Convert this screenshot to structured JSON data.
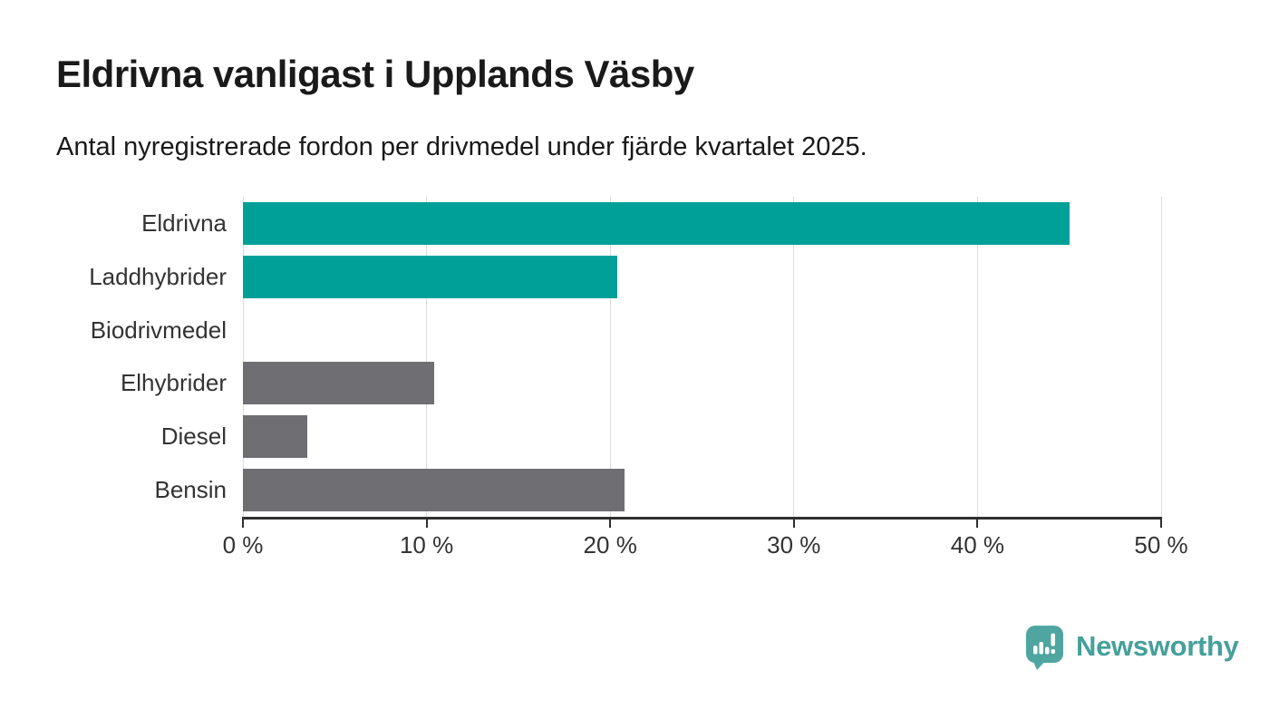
{
  "header": {
    "title": "Eldrivna vanligast i Upplands Väsby",
    "subtitle": "Antal nyregistrerade fordon per drivmedel under fjärde kvartalet 2025."
  },
  "chart_data": {
    "type": "bar",
    "orientation": "horizontal",
    "title": "Eldrivna vanligast i Upplands Väsby",
    "subtitle": "Antal nyregistrerade fordon per drivmedel under fjärde kvartalet 2025.",
    "categories": [
      "Eldrivna",
      "Laddhybrider",
      "Biodrivmedel",
      "Elhybrider",
      "Diesel",
      "Bensin"
    ],
    "values": [
      45.0,
      20.4,
      0,
      10.4,
      3.5,
      20.8
    ],
    "unit": "%",
    "bar_colors": [
      "#00A099",
      "#00A099",
      "#6E6E73",
      "#6E6E73",
      "#6E6E73",
      "#6E6E73"
    ],
    "xlim": [
      0,
      50
    ],
    "x_ticks": [
      0,
      10,
      20,
      30,
      40,
      50
    ],
    "x_tick_labels": [
      "0 %",
      "10 %",
      "20 %",
      "30 %",
      "40 %",
      "50 %"
    ],
    "grid": true,
    "legend_position": "none"
  },
  "colors": {
    "accent_teal": "#00A099",
    "bar_gray": "#6E6E73",
    "gridline": "#DCDCDC",
    "axis": "#2F2F2F",
    "label_text": "#333333",
    "heading_text": "#1A1A1A",
    "brand_icon": "#4FA6A0",
    "brand_text": "#45A09A"
  },
  "footer": {
    "brand": "Newsworthy",
    "logo_icon": "newsworthy-chart-pin-icon"
  }
}
